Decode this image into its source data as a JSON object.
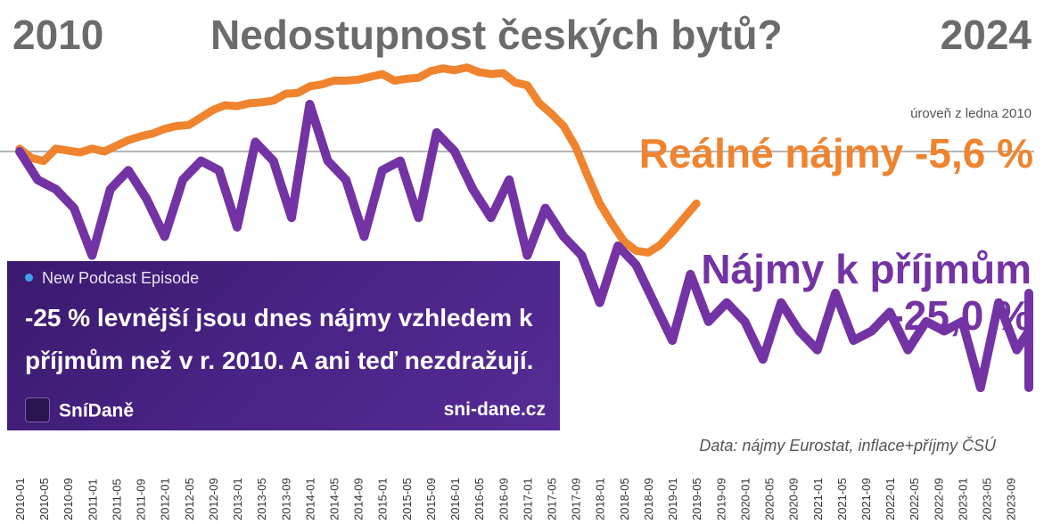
{
  "header": {
    "year_start": "2010",
    "year_end": "2024",
    "title": "Nedostupnost českých bytů?"
  },
  "baseline_label": "úroveň z ledna 2010",
  "source": "Data: nájmy Eurostat, inflace+příjmy ČSÚ",
  "promo": {
    "tag": "New Podcast Episode",
    "headline": "-25 % levnější jsou dnes nájmy vzhledem k příjmům než v r. 2010. A ani teď nezdražují.",
    "brand": "SníDaně",
    "url": "sni-dane.cz"
  },
  "chart_data": {
    "type": "line",
    "xlabel": "",
    "ylabel": "",
    "ylim": [
      70,
      110
    ],
    "baseline": 100,
    "x_ticks": [
      "2010-01",
      "2010-05",
      "2010-09",
      "2011-01",
      "2011-05",
      "2011-09",
      "2012-01",
      "2012-05",
      "2012-09",
      "2013-01",
      "2013-05",
      "2013-09",
      "2014-01",
      "2014-05",
      "2014-09",
      "2015-01",
      "2015-05",
      "2015-09",
      "2016-01",
      "2016-05",
      "2016-09",
      "2017-01",
      "2017-05",
      "2017-09",
      "2018-01",
      "2018-05",
      "2018-09",
      "2019-01",
      "2019-05",
      "2019-09",
      "2020-01",
      "2020-05",
      "2020-09",
      "2021-01",
      "2021-05",
      "2021-09",
      "2022-01",
      "2022-05",
      "2022-09",
      "2023-01",
      "2023-05",
      "2023-09"
    ],
    "series": [
      {
        "name": "Reálné nájmy",
        "label": "Reálné nájmy",
        "value_label": "-5,6 %",
        "color": "#f0832e",
        "step_months": 2,
        "values": [
          100.3,
          99.3,
          99.0,
          100.3,
          100.1,
          99.9,
          100.3,
          100.0,
          100.6,
          101.2,
          101.6,
          101.9,
          102.4,
          102.7,
          102.8,
          103.6,
          104.4,
          104.9,
          104.8,
          105.1,
          105.2,
          105.4,
          106.1,
          106.2,
          106.9,
          107.1,
          107.5,
          107.5,
          107.6,
          107.9,
          108.2,
          107.5,
          107.7,
          107.8,
          108.5,
          108.8,
          108.6,
          108.9,
          108.4,
          108.2,
          108.3,
          107.3,
          107.0,
          105.1,
          104.0,
          102.7,
          100.5,
          97.4,
          94.5,
          92.4,
          90.5,
          89.5,
          89.3,
          90.1,
          91.5,
          93.0,
          94.5
        ],
        "value": -5.6
      },
      {
        "name": "Nájmy k příjmům",
        "label": "Nájmy k příjmům",
        "value_label": "-25,0 %",
        "color": "#7433a4",
        "step_months": 3,
        "values": [
          100,
          97,
          96,
          94,
          89,
          96,
          98,
          95,
          91,
          97,
          99,
          98,
          92,
          101,
          99,
          93,
          105,
          99,
          97,
          91,
          98,
          99,
          93,
          102,
          100,
          96,
          93,
          97,
          89,
          94,
          91,
          89,
          84,
          90,
          88,
          84,
          80,
          87,
          82,
          84,
          82,
          78,
          84,
          81,
          79,
          85,
          80,
          81,
          83,
          79,
          82,
          81,
          82,
          75,
          84,
          79,
          81,
          77,
          84,
          80,
          79,
          85,
          80,
          78,
          84,
          79,
          75
        ],
        "value": -25.0
      }
    ]
  }
}
